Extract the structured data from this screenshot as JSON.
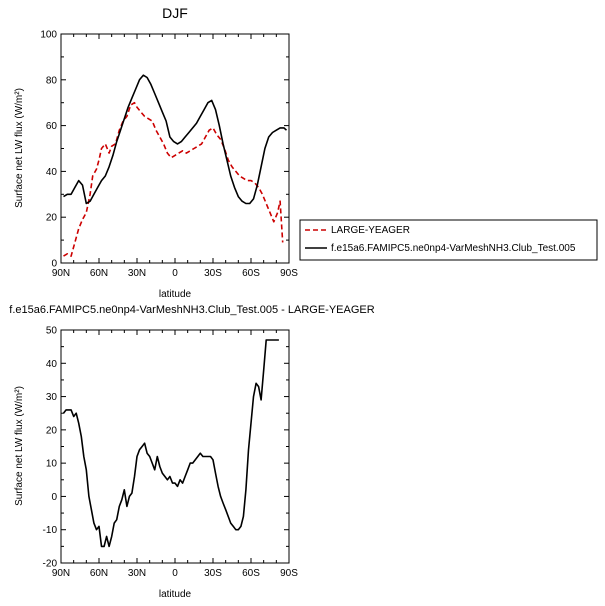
{
  "chart_data": [
    {
      "type": "line",
      "title": "DJF",
      "xlabel": "latitude",
      "ylabel": "Surface net LW flux (W/m²)",
      "xlim": [
        -90,
        90
      ],
      "ylim": [
        0,
        100
      ],
      "x_ticks": [
        -90,
        -60,
        -30,
        0,
        30,
        60,
        90
      ],
      "x_tick_labels": [
        "90N",
        "60N",
        "30N",
        "0",
        "30S",
        "60S",
        "90S"
      ],
      "y_ticks": [
        0,
        20,
        40,
        60,
        80,
        100
      ],
      "y_tick_labels": [
        "0",
        "20",
        "40",
        "60",
        "80",
        "100"
      ],
      "grid": false,
      "legend_position": "right",
      "series": [
        {
          "name": "LARGE-YEAGER",
          "color": "#cc0000",
          "dash": "dashed",
          "x": [
            -88,
            -85,
            -82,
            -79,
            -76,
            -73,
            -70,
            -67,
            -65,
            -62,
            -60,
            -58,
            -55,
            -52,
            -50,
            -47,
            -44,
            -41,
            -38,
            -35,
            -32,
            -30,
            -27,
            -24,
            -21,
            -18,
            -15,
            -12,
            -9,
            -6,
            -3,
            0,
            3,
            6,
            9,
            12,
            15,
            18,
            21,
            24,
            27,
            30,
            33,
            36,
            39,
            42,
            45,
            48,
            51,
            54,
            57,
            60,
            63,
            66,
            69,
            72,
            75,
            78,
            81,
            83,
            85
          ],
          "y": [
            3,
            4,
            3,
            9,
            15,
            19,
            22,
            30,
            38,
            41,
            45,
            50,
            52,
            48,
            51,
            52,
            58,
            62,
            64,
            69,
            70,
            68,
            66,
            64,
            63,
            62,
            58,
            55,
            52,
            48,
            46,
            47,
            48,
            49,
            48,
            49,
            50,
            51,
            52,
            55,
            58,
            59,
            56,
            54,
            50,
            45,
            42,
            40,
            38,
            37,
            36,
            36,
            35,
            33,
            30,
            26,
            22,
            18,
            22,
            27,
            9
          ]
        },
        {
          "name": "f.e15a6.FAMIPC5.ne0np4-VarMeshNH3.Club_Test.005",
          "color": "#000000",
          "dash": "solid",
          "x": [
            -88,
            -85,
            -82,
            -79,
            -76,
            -73,
            -70,
            -67,
            -64,
            -61,
            -58,
            -55,
            -52,
            -49,
            -46,
            -43,
            -40,
            -37,
            -34,
            -31,
            -28,
            -25,
            -22,
            -19,
            -16,
            -13,
            -10,
            -7,
            -4,
            -1,
            2,
            5,
            8,
            11,
            14,
            17,
            20,
            23,
            26,
            29,
            32,
            35,
            38,
            41,
            44,
            47,
            50,
            53,
            56,
            59,
            62,
            65,
            68,
            71,
            74,
            77,
            80,
            83,
            86,
            88
          ],
          "y": [
            29,
            30,
            30,
            33,
            36,
            34,
            26,
            27,
            30,
            33,
            36,
            38,
            42,
            47,
            53,
            58,
            63,
            68,
            72,
            76,
            80,
            82,
            81,
            78,
            74,
            70,
            66,
            62,
            55,
            53,
            52,
            53,
            55,
            57,
            59,
            61,
            64,
            67,
            70,
            71,
            67,
            60,
            52,
            45,
            38,
            33,
            29,
            27,
            26,
            26,
            28,
            34,
            42,
            50,
            55,
            57,
            58,
            59,
            59,
            58
          ]
        }
      ]
    },
    {
      "type": "line",
      "title": "f.e15a6.FAMIPC5.ne0np4-VarMeshNH3.Club_Test.005 - LARGE-YEAGER",
      "xlabel": "latitude",
      "ylabel": "Surface net LW flux (W/m²)",
      "xlim": [
        -90,
        90
      ],
      "ylim": [
        -20,
        50
      ],
      "x_ticks": [
        -90,
        -60,
        -30,
        0,
        30,
        60,
        90
      ],
      "x_tick_labels": [
        "90N",
        "60N",
        "30N",
        "0",
        "30S",
        "60S",
        "90S"
      ],
      "y_ticks": [
        -20,
        -10,
        0,
        10,
        20,
        30,
        40,
        50
      ],
      "y_tick_labels": [
        "-20",
        "-10",
        "0",
        "10",
        "20",
        "30",
        "40",
        "50"
      ],
      "grid": false,
      "series": [
        {
          "color": "#000000",
          "dash": "solid",
          "x": [
            -88,
            -86,
            -84,
            -82,
            -80,
            -78,
            -76,
            -74,
            -72,
            -70,
            -68,
            -66,
            -64,
            -62,
            -60,
            -58,
            -56,
            -54,
            -52,
            -50,
            -48,
            -46,
            -44,
            -42,
            -40,
            -38,
            -36,
            -34,
            -32,
            -30,
            -28,
            -26,
            -24,
            -22,
            -20,
            -18,
            -16,
            -14,
            -12,
            -10,
            -8,
            -6,
            -4,
            -2,
            0,
            2,
            4,
            6,
            8,
            10,
            12,
            14,
            16,
            18,
            20,
            22,
            24,
            26,
            28,
            30,
            32,
            34,
            36,
            38,
            40,
            42,
            44,
            46,
            48,
            50,
            52,
            54,
            56,
            58,
            60,
            62,
            64,
            66,
            68,
            70,
            72,
            74,
            76,
            78,
            80,
            82
          ],
          "y": [
            25,
            26,
            26,
            26,
            24,
            25,
            22,
            18,
            12,
            8,
            0,
            -4,
            -8,
            -10,
            -9,
            -15,
            -15,
            -12,
            -15,
            -12,
            -8,
            -7,
            -3,
            -1,
            2,
            -3,
            0,
            1,
            6,
            12,
            14,
            15,
            16,
            13,
            12,
            10,
            8,
            12,
            9,
            7,
            6,
            5,
            6,
            4,
            4,
            3,
            5,
            4,
            6,
            8,
            10,
            10,
            11,
            12,
            13,
            12,
            12,
            12,
            12,
            11,
            7,
            3,
            0,
            -2,
            -4,
            -6,
            -8,
            -9,
            -10,
            -10,
            -9,
            -6,
            2,
            14,
            22,
            30,
            34,
            33,
            29,
            38,
            47,
            47,
            47,
            47,
            47,
            47
          ]
        }
      ]
    }
  ]
}
